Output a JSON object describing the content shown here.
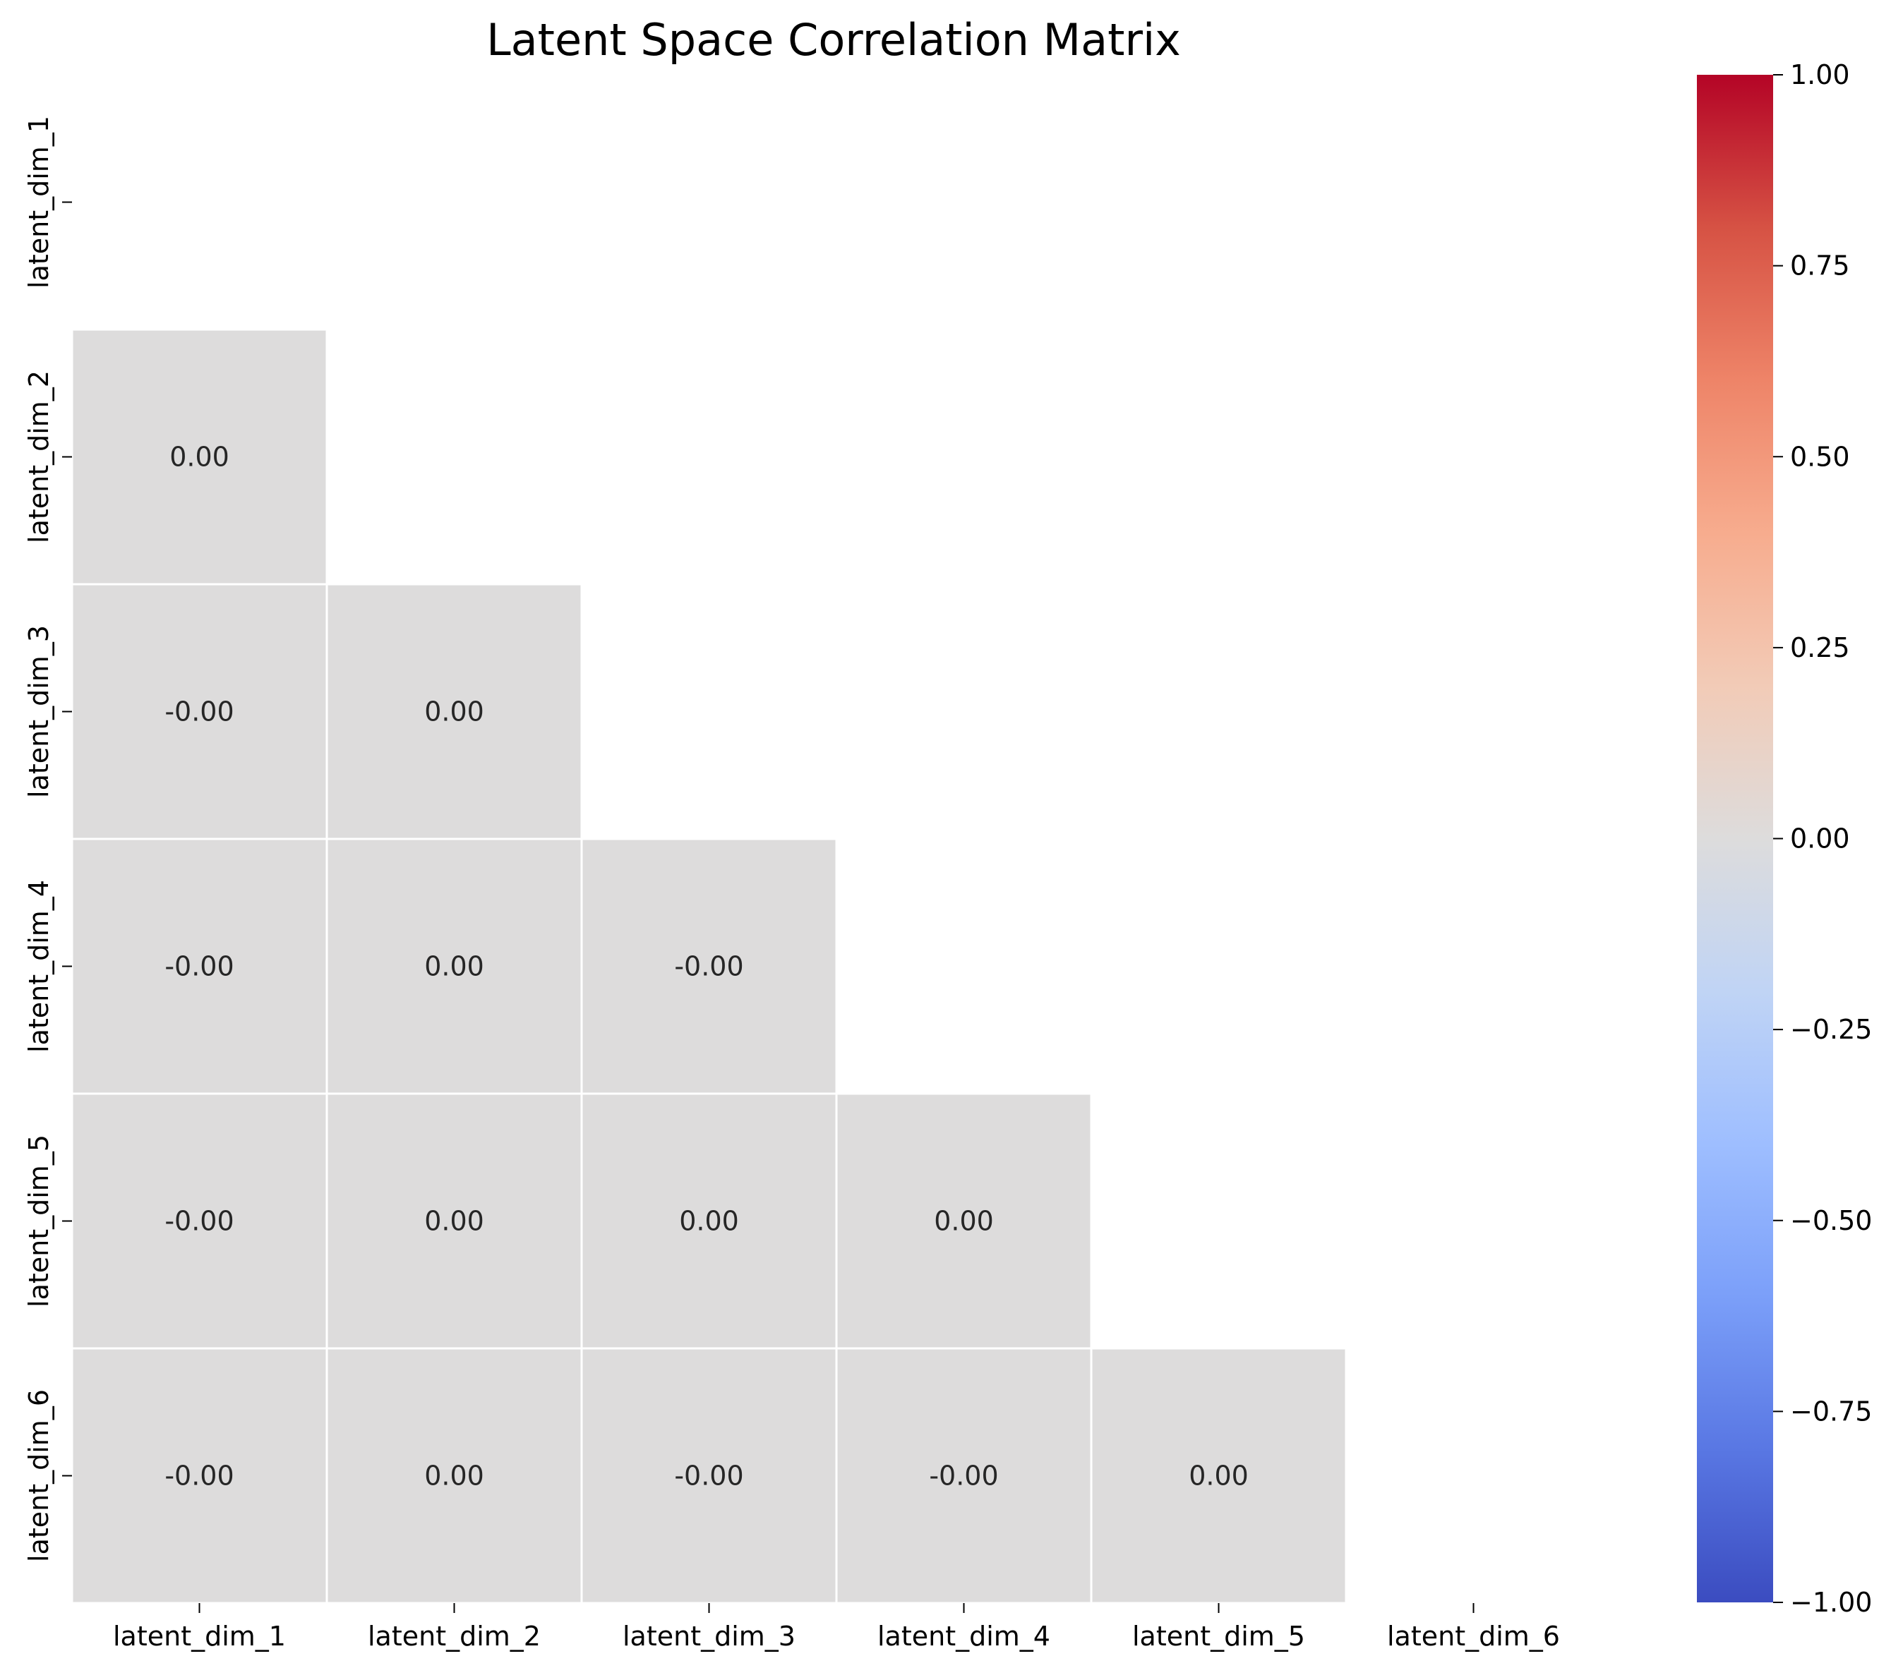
{
  "chart_data": {
    "type": "heatmap",
    "title": "Latent Space Correlation Matrix",
    "xlabel": "",
    "ylabel": "",
    "x_categories": [
      "latent_dim_1",
      "latent_dim_2",
      "latent_dim_3",
      "latent_dim_4",
      "latent_dim_5",
      "latent_dim_6"
    ],
    "y_categories": [
      "latent_dim_1",
      "latent_dim_2",
      "latent_dim_3",
      "latent_dim_4",
      "latent_dim_5",
      "latent_dim_6"
    ],
    "mask": "upper-triangle-including-diagonal",
    "cells": [
      {
        "row": "latent_dim_2",
        "col": "latent_dim_1",
        "value": 0.0,
        "label": "0.00"
      },
      {
        "row": "latent_dim_3",
        "col": "latent_dim_1",
        "value": -0.0,
        "label": "-0.00"
      },
      {
        "row": "latent_dim_3",
        "col": "latent_dim_2",
        "value": 0.0,
        "label": "0.00"
      },
      {
        "row": "latent_dim_4",
        "col": "latent_dim_1",
        "value": -0.0,
        "label": "-0.00"
      },
      {
        "row": "latent_dim_4",
        "col": "latent_dim_2",
        "value": 0.0,
        "label": "0.00"
      },
      {
        "row": "latent_dim_4",
        "col": "latent_dim_3",
        "value": -0.0,
        "label": "-0.00"
      },
      {
        "row": "latent_dim_5",
        "col": "latent_dim_1",
        "value": -0.0,
        "label": "-0.00"
      },
      {
        "row": "latent_dim_5",
        "col": "latent_dim_2",
        "value": 0.0,
        "label": "0.00"
      },
      {
        "row": "latent_dim_5",
        "col": "latent_dim_3",
        "value": 0.0,
        "label": "0.00"
      },
      {
        "row": "latent_dim_5",
        "col": "latent_dim_4",
        "value": 0.0,
        "label": "0.00"
      },
      {
        "row": "latent_dim_6",
        "col": "latent_dim_1",
        "value": -0.0,
        "label": "-0.00"
      },
      {
        "row": "latent_dim_6",
        "col": "latent_dim_2",
        "value": 0.0,
        "label": "0.00"
      },
      {
        "row": "latent_dim_6",
        "col": "latent_dim_3",
        "value": -0.0,
        "label": "-0.00"
      },
      {
        "row": "latent_dim_6",
        "col": "latent_dim_4",
        "value": -0.0,
        "label": "-0.00"
      },
      {
        "row": "latent_dim_6",
        "col": "latent_dim_5",
        "value": 0.0,
        "label": "0.00"
      }
    ],
    "colorbar": {
      "colormap": "coolwarm",
      "vmin": -1.0,
      "vmax": 1.0,
      "ticks": [
        1.0,
        0.75,
        0.5,
        0.25,
        0.0,
        -0.25,
        -0.5,
        -0.75,
        -1.0
      ],
      "tick_labels": [
        "1.00",
        "0.75",
        "0.50",
        "0.25",
        "0.00",
        "−0.25",
        "−0.50",
        "−0.75",
        "−1.00"
      ],
      "colors": [
        "#3b4cc0",
        "#5977e3",
        "#7b9ff9",
        "#9ebeff",
        "#c0d4f5",
        "#dddcdc",
        "#f2cbb7",
        "#f7ac8e",
        "#ee8468",
        "#d65244",
        "#b40426"
      ],
      "placement": "right"
    },
    "grid": false,
    "cell_border_color": "#ffffff"
  }
}
